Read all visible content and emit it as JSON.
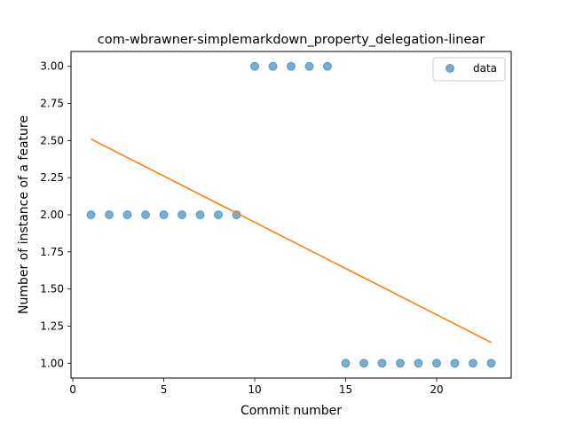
{
  "chart_data": {
    "type": "scatter",
    "title": "com-wbrawner-simplemarkdown_property_delegation-linear",
    "xlabel": "Commit number",
    "ylabel": "Number of instance of a feature",
    "xlim": [
      -0.1,
      24.1
    ],
    "ylim": [
      0.9,
      3.1
    ],
    "xticks": [
      0,
      5,
      10,
      15,
      20
    ],
    "yticks": [
      1.0,
      1.25,
      1.5,
      1.75,
      2.0,
      2.25,
      2.5,
      2.75,
      3.0
    ],
    "ytick_labels": [
      "1.00",
      "1.25",
      "1.50",
      "1.75",
      "2.00",
      "2.25",
      "2.50",
      "2.75",
      "3.00"
    ],
    "grid": false,
    "legend_position": "top-right",
    "series": [
      {
        "name": "data",
        "kind": "scatter",
        "color": "#1f77b4",
        "x": [
          1,
          2,
          3,
          4,
          5,
          6,
          7,
          8,
          9,
          10,
          11,
          12,
          13,
          14,
          15,
          16,
          17,
          18,
          19,
          20,
          21,
          22,
          23
        ],
        "y": [
          2,
          2,
          2,
          2,
          2,
          2,
          2,
          2,
          2,
          3,
          3,
          3,
          3,
          3,
          1,
          1,
          1,
          1,
          1,
          1,
          1,
          1,
          1
        ]
      },
      {
        "kind": "line",
        "color": "#ff7f0e",
        "x": [
          1,
          23
        ],
        "y": [
          2.51,
          1.14
        ]
      }
    ]
  }
}
